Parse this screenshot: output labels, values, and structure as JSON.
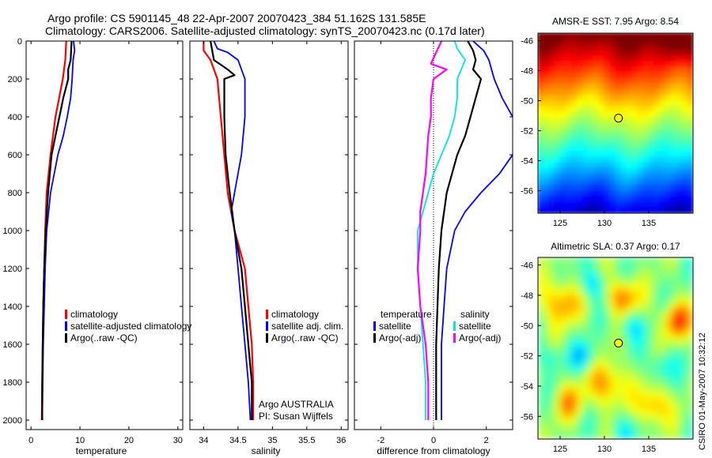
{
  "title": {
    "line1": "Argo profile: CS 5901145_48 22-Apr-2007 20070423_384 51.162S 131.585E",
    "line2": "Climatology: CARS2006. Satellite-adjusted climatology: synTS_20070423.nc (0.17d later)"
  },
  "colors": {
    "red": "#ff0000",
    "blue": "#0000ff",
    "black": "#000000",
    "cyan": "#00e5e5",
    "magenta": "#ff00ff"
  },
  "credit": "CSIRO 01-May-2007 10:32:12",
  "chart_data": [
    {
      "type": "line",
      "xlabel": "temperature",
      "xlim": [
        -1,
        31
      ],
      "ylim": [
        2050,
        0
      ],
      "xticks": [
        "0",
        "10",
        "20",
        "30"
      ],
      "yticks": [
        "0",
        "200",
        "400",
        "600",
        "800",
        "1000",
        "1200",
        "1400",
        "1600",
        "1800",
        "2000"
      ],
      "legend": [
        "climatology",
        "satellite-adjusted climatology",
        "Argo(..raw -QC)"
      ],
      "series": [
        {
          "name": "climatology",
          "color": "red",
          "depth": [
            0,
            100,
            200,
            400,
            600,
            800,
            1000,
            1200,
            1400,
            1600,
            1800,
            2000
          ],
          "values": [
            7.2,
            7.0,
            6.5,
            5.0,
            4.0,
            3.2,
            2.9,
            2.7,
            2.5,
            2.4,
            2.3,
            2.2
          ]
        },
        {
          "name": "satellite-adjusted climatology",
          "color": "blue",
          "depth": [
            0,
            50,
            100,
            200,
            300,
            400,
            500,
            600,
            800,
            1000,
            1200,
            1400,
            1600,
            1800,
            2000
          ],
          "values": [
            8.7,
            8.9,
            8.6,
            8.4,
            8.1,
            7.4,
            6.6,
            5.5,
            4.0,
            3.2,
            2.9,
            2.7,
            2.5,
            2.4,
            2.3
          ]
        },
        {
          "name": "Argo(..raw -QC)",
          "color": "black",
          "depth": [
            0,
            50,
            100,
            150,
            200,
            300,
            400,
            500,
            600,
            800,
            1000,
            1200,
            1400,
            1600,
            1800,
            2000
          ],
          "values": [
            8.3,
            8.2,
            8.1,
            7.6,
            7.6,
            6.6,
            5.8,
            5.0,
            4.2,
            3.5,
            3.0,
            2.7,
            2.5,
            2.4,
            2.3,
            2.3
          ]
        }
      ]
    },
    {
      "type": "line",
      "xlabel": "salinity",
      "xlim": [
        33.8,
        36.1
      ],
      "ylim": [
        2050,
        0
      ],
      "xticks": [
        "34",
        "34.5",
        "35",
        "35.5",
        "36"
      ],
      "yticks": [],
      "legend": [
        "climatology",
        "satellite adj. clim.",
        "Argo(..raw -QC)"
      ],
      "annotation": [
        "Argo AUSTRALIA",
        "PI: Susan Wijffels"
      ],
      "series": [
        {
          "name": "climatology",
          "color": "red",
          "depth": [
            0,
            50,
            100,
            200,
            400,
            600,
            800,
            1000,
            1200,
            1400,
            1600,
            1800,
            2000
          ],
          "values": [
            34.0,
            34.0,
            34.1,
            34.2,
            34.25,
            34.3,
            34.35,
            34.45,
            34.6,
            34.65,
            34.7,
            34.72,
            34.72
          ]
        },
        {
          "name": "satellite adj. clim.",
          "color": "blue",
          "depth": [
            0,
            40,
            60,
            100,
            200,
            400,
            600,
            800,
            900,
            1000,
            1200,
            1400,
            1600,
            1800,
            2000
          ],
          "values": [
            34.15,
            34.2,
            34.35,
            34.5,
            34.6,
            34.6,
            34.55,
            34.45,
            34.4,
            34.45,
            34.5,
            34.55,
            34.6,
            34.65,
            34.68
          ]
        },
        {
          "name": "Argo(..raw -QC)",
          "color": "black",
          "depth": [
            0,
            100,
            150,
            180,
            200,
            300,
            400,
            600,
            800,
            1000,
            1200,
            1400,
            1600,
            1800,
            2000
          ],
          "values": [
            34.1,
            34.15,
            34.35,
            34.45,
            34.3,
            34.3,
            34.3,
            34.32,
            34.38,
            34.45,
            34.55,
            34.6,
            34.65,
            34.7,
            34.7
          ]
        }
      ]
    },
    {
      "type": "line",
      "xlabel": "difference from climatology",
      "xlim": [
        -3,
        3
      ],
      "ylim": [
        2050,
        0
      ],
      "xticks": [
        "-2",
        "0",
        "2"
      ],
      "yticks": [],
      "legend_title_left": "temperature",
      "legend_title_right": "salinity",
      "legend_left": [
        "satellite",
        "Argo(-adj)"
      ],
      "legend_right": [
        "satellite",
        "Argo(-adj)"
      ],
      "series": [
        {
          "name": "temperature satellite",
          "color": "blue",
          "depth": [
            0,
            50,
            100,
            200,
            300,
            400,
            500,
            600,
            700,
            800,
            900,
            1000,
            1200,
            1400,
            1600,
            1800,
            2000
          ],
          "values": [
            1.5,
            1.9,
            2.1,
            2.3,
            2.6,
            3.0,
            3.3,
            3.0,
            2.5,
            1.8,
            1.2,
            0.8,
            0.5,
            0.4,
            0.3,
            0.3,
            0.3
          ]
        },
        {
          "name": "temperature Argo(-adj)",
          "color": "black",
          "depth": [
            0,
            50,
            100,
            150,
            200,
            300,
            400,
            500,
            600,
            800,
            1000,
            1200,
            1400,
            1600,
            1800,
            2000
          ],
          "values": [
            1.3,
            1.5,
            1.6,
            1.5,
            1.8,
            1.6,
            1.4,
            1.2,
            0.9,
            0.5,
            0.3,
            0.2,
            0.15,
            0.1,
            0.1,
            0.1
          ]
        },
        {
          "name": "salinity satellite",
          "color": "cyan",
          "depth": [
            0,
            40,
            100,
            200,
            300,
            400,
            500,
            600,
            700,
            800,
            900,
            1000,
            1200,
            1400,
            1600,
            1800,
            2000
          ],
          "values": [
            0.8,
            0.9,
            1.2,
            0.9,
            0.9,
            0.8,
            0.6,
            0.3,
            0.0,
            -0.2,
            -0.4,
            -0.6,
            -0.6,
            -0.5,
            -0.4,
            -0.3,
            -0.3
          ]
        },
        {
          "name": "salinity Argo(-adj)",
          "color": "magenta",
          "depth": [
            0,
            30,
            60,
            120,
            150,
            200,
            300,
            400,
            500,
            700,
            900,
            1000,
            1200,
            1400,
            1600,
            1800,
            2000
          ],
          "values": [
            0.3,
            0.2,
            0.1,
            -0.1,
            0.5,
            0.0,
            -0.1,
            -0.1,
            -0.2,
            -0.3,
            -0.5,
            -0.5,
            -0.6,
            -0.5,
            -0.3,
            -0.2,
            -0.2
          ]
        }
      ]
    },
    {
      "type": "heatmap",
      "title": "AMSR-E SST: 7.95 Argo: 8.54",
      "xlim": [
        122.5,
        140
      ],
      "ylim": [
        -57.5,
        -45.5
      ],
      "xticks": [
        "125",
        "130",
        "135"
      ],
      "yticks": [
        "-46",
        "-48",
        "-50",
        "-52",
        "-54",
        "-56"
      ],
      "marker": {
        "lon": 131.585,
        "lat": -51.162
      }
    },
    {
      "type": "heatmap",
      "title": "Altimetric SLA: 0.37 Argo: 0.17",
      "xlim": [
        122.5,
        140
      ],
      "ylim": [
        -57.5,
        -45.5
      ],
      "xticks": [
        "125",
        "130",
        "135"
      ],
      "yticks": [
        "-46",
        "-48",
        "-50",
        "-52",
        "-54",
        "-56"
      ],
      "marker": {
        "lon": 131.585,
        "lat": -51.162
      }
    }
  ]
}
